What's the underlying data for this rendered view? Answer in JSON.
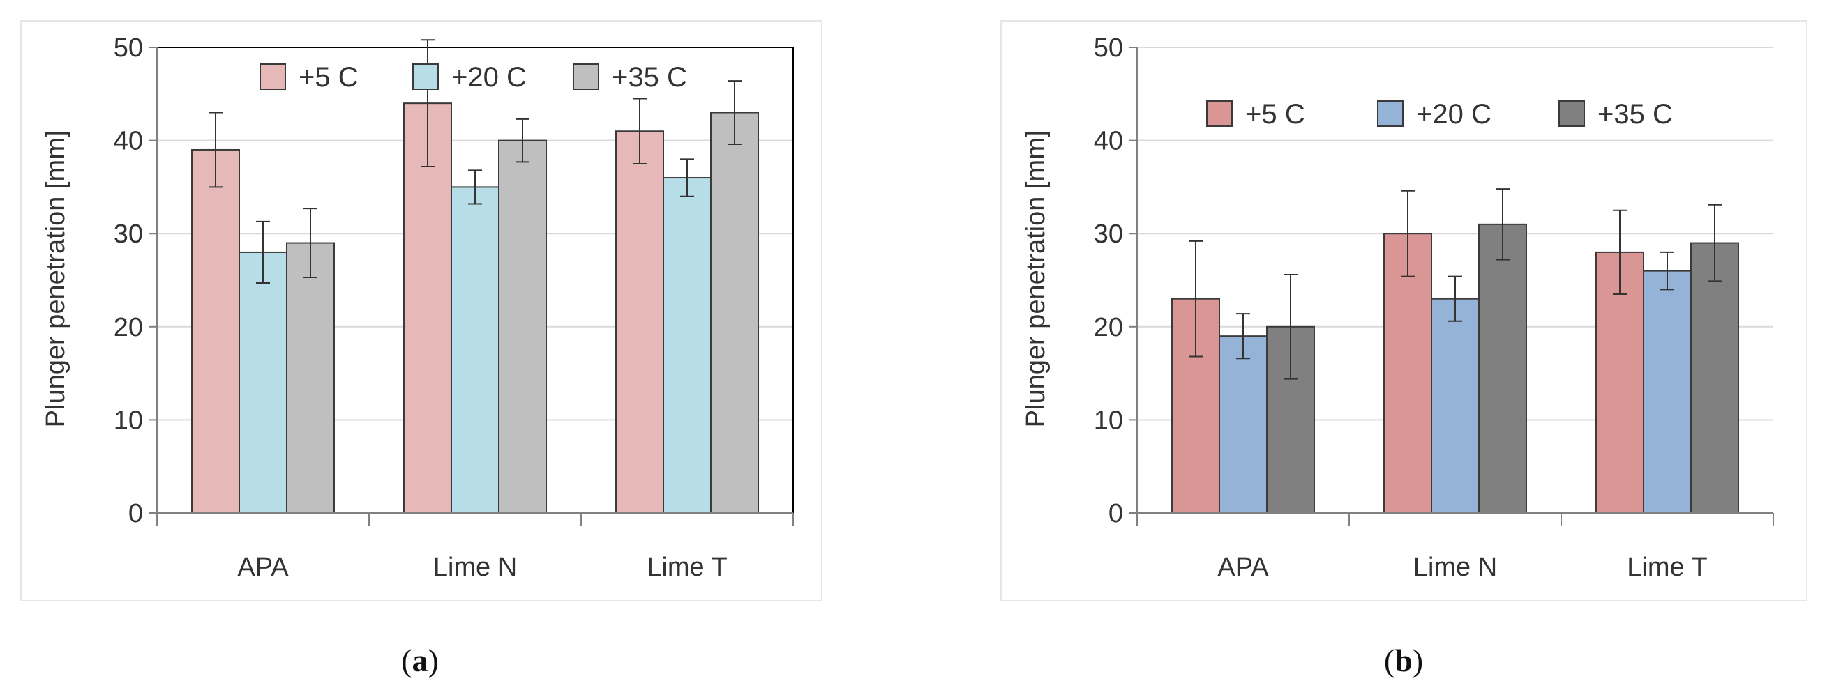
{
  "chart_data": [
    {
      "type": "bar",
      "panel_label": "a",
      "ylabel": "Plunger penetration [mm]",
      "xlabel": "",
      "ylim": [
        0,
        50
      ],
      "yticks": [
        0,
        10,
        20,
        30,
        40,
        50
      ],
      "grid": true,
      "legend_position": "top",
      "categories": [
        "APA",
        "Lime N",
        "Lime T"
      ],
      "series": [
        {
          "name": "+5 C",
          "color": "#e6b8b7",
          "values": [
            39,
            44,
            41
          ],
          "errors": [
            4,
            6.8,
            3.5
          ]
        },
        {
          "name": "+20 C",
          "color": "#b7dde8",
          "values": [
            28,
            35,
            36
          ],
          "errors": [
            3.3,
            1.8,
            2
          ]
        },
        {
          "name": "+35 C",
          "color": "#bfbfbf",
          "values": [
            29,
            40,
            43
          ],
          "errors": [
            3.7,
            2.3,
            3.4
          ]
        }
      ]
    },
    {
      "type": "bar",
      "panel_label": "b",
      "ylabel": "Plunger penetration [mm]",
      "xlabel": "",
      "ylim": [
        0,
        50
      ],
      "yticks": [
        0,
        10,
        20,
        30,
        40,
        50
      ],
      "grid": true,
      "legend_position": "top",
      "categories": [
        "APA",
        "Lime N",
        "Lime T"
      ],
      "series": [
        {
          "name": "+5 C",
          "color": "#da9694",
          "values": [
            23,
            30,
            28
          ],
          "errors": [
            6.2,
            4.6,
            4.5
          ]
        },
        {
          "name": "+20 C",
          "color": "#95b3d7",
          "values": [
            19,
            23,
            26
          ],
          "errors": [
            2.4,
            2.4,
            2
          ]
        },
        {
          "name": "+35 C",
          "color": "#808080",
          "values": [
            20,
            31,
            29
          ],
          "errors": [
            5.6,
            3.8,
            4.1
          ]
        }
      ]
    }
  ],
  "captions": [
    {
      "open": "(",
      "letter": "a",
      "close": ")"
    },
    {
      "open": "(",
      "letter": "b",
      "close": ")"
    }
  ]
}
